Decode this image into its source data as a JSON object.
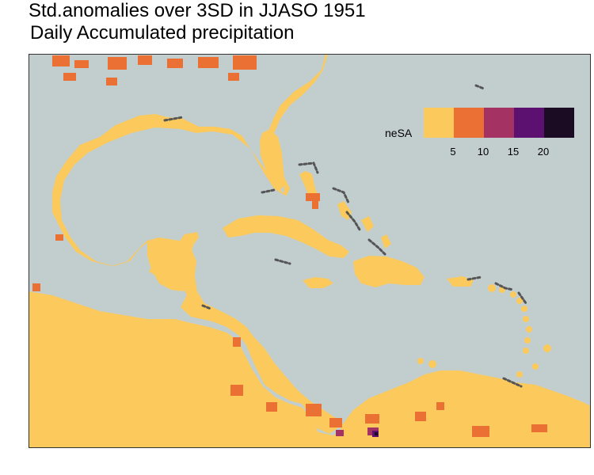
{
  "title": "Std.anomalies over 3SD in JJASO 1951",
  "subtitle": " Daily Accumulated precipitation",
  "colors": {
    "sea": "#c2cdcd",
    "land": "#fcca5c",
    "coast_dots": "#555555",
    "frame": "#333333"
  },
  "legend": {
    "title": "neSA",
    "colors": [
      "#fcca5c",
      "#ea7034",
      "#a43363",
      "#5c1170",
      "#1b0c24"
    ],
    "ticks": [
      {
        "label": "5",
        "value": 5
      },
      {
        "label": "10",
        "value": 10
      },
      {
        "label": "15",
        "value": 15
      },
      {
        "label": "20",
        "value": 20
      }
    ]
  }
}
